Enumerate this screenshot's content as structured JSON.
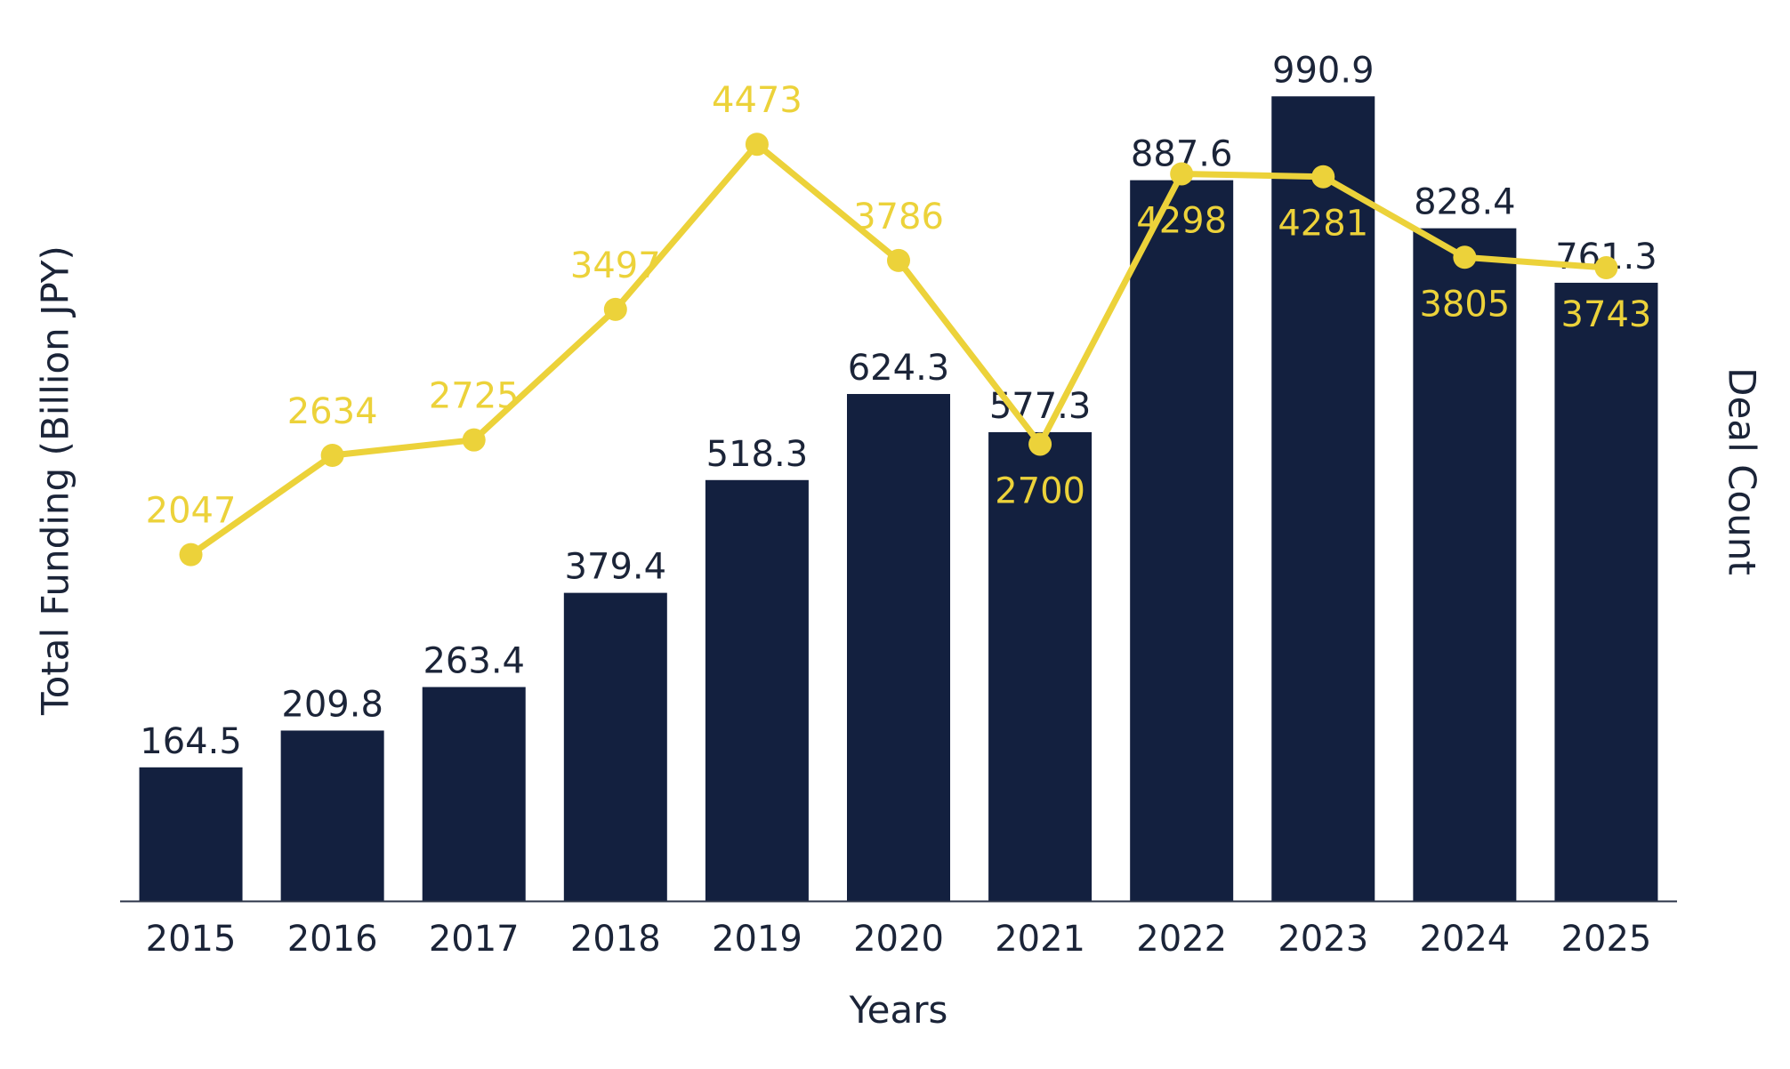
{
  "chart_data": {
    "type": "bar+line",
    "categories": [
      "2015",
      "2016",
      "2017",
      "2018",
      "2019",
      "2020",
      "2021",
      "2022",
      "2023",
      "2024",
      "2025"
    ],
    "series": [
      {
        "name": "Total Funding (Billion JPY)",
        "type": "bar",
        "axis": "left",
        "values": [
          164.5,
          209.8,
          263.4,
          379.4,
          518.3,
          624.3,
          577.3,
          887.6,
          990.9,
          828.4,
          761.3
        ],
        "labels": [
          "164.5",
          "209.8",
          "263.4",
          "379.4",
          "518.3",
          "624.3",
          "577.3",
          "887.6",
          "990.9",
          "828.4",
          "761.3"
        ]
      },
      {
        "name": "Deal Count",
        "type": "line",
        "axis": "right",
        "values": [
          2047,
          2634,
          2725,
          3497,
          4473,
          3786,
          2700,
          4298,
          4281,
          3805,
          3743
        ],
        "labels": [
          "2047",
          "2634",
          "2725",
          "3497",
          "4473",
          "3786",
          "2700",
          "4298",
          "4281",
          "3805",
          "3743"
        ],
        "label_position": [
          "above",
          "above",
          "above",
          "above",
          "above",
          "above",
          "below",
          "below",
          "below",
          "below",
          "below"
        ]
      }
    ],
    "xlabel": "Years",
    "ylabel": "Total Funding (Billion JPY)",
    "y2label": "Deal Count",
    "ylim": [
      0,
      1000
    ],
    "y2lim": [
      0,
      4800
    ],
    "grid": false,
    "colors": {
      "bar": "#13203f",
      "line": "#ecd23a",
      "line_label": "#ecd23a",
      "bar_label": "#1b2438",
      "axis": "#2b3448",
      "y2label": "#ecd23a"
    }
  }
}
